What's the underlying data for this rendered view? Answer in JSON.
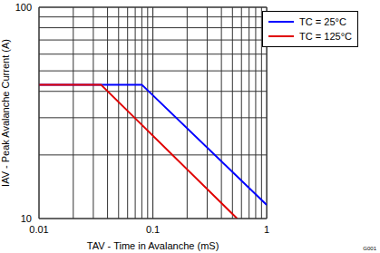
{
  "chart_data": {
    "type": "line",
    "x_label": "TAV - Time in Avalanche (mS)",
    "y_label": "IAV - Peak Avalanche Current (A)",
    "log": true,
    "grid": true,
    "legend": "upper right",
    "xlim": [
      0.01,
      1
    ],
    "xticks": [
      0.01,
      0.1,
      1
    ],
    "ylim": [
      10,
      100
    ],
    "yticks": [
      10,
      100
    ],
    "annotations": [
      "G001"
    ],
    "series": [
      {
        "name": "TC = 25°C",
        "color": "#0000ff",
        "x": [
          0.01,
          0.08,
          1
        ],
        "values": [
          43,
          43,
          11.6
        ]
      },
      {
        "name": "TC = 125°C",
        "color": "#e00000",
        "x": [
          0.01,
          0.035,
          0.55
        ],
        "values": [
          43,
          43,
          10
        ]
      }
    ]
  }
}
